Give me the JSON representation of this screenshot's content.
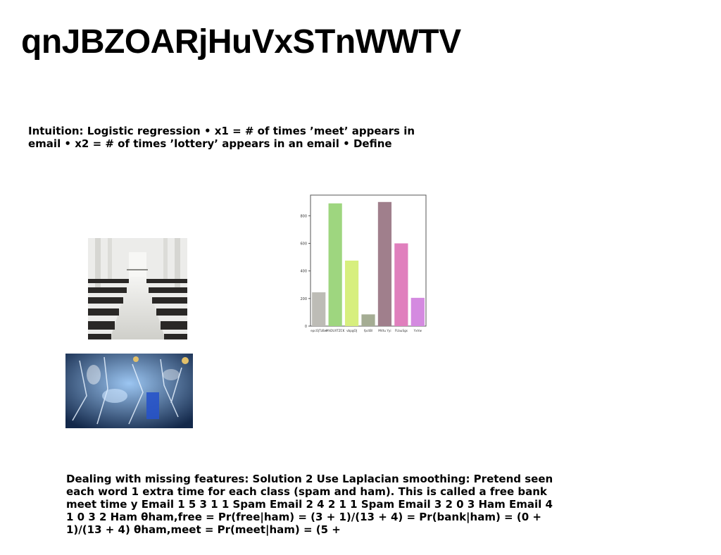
{
  "slide": {
    "title": "qnJBZOARjHuVxSTnWWTV",
    "intro_text": "Intuition: Logistic regression • x1 = # of times ’meet’ appears in email • x2 = # of times ’lottery’ appears in an email • Define",
    "body_text": "Dealing with missing features: Solution 2 Use Laplacian smoothing: Pretend seen each word 1 extra time for each class (spam and ham). This is called a free bank meet time y Email 1 5 3 1 1 Spam Email 2 4 2 1 1 Spam Email 3 2 0 3 Ham Email 4 1 0 3 2 Ham θham,free = Pr(free|ham) = (3 + 1)/(13 + 4) = Pr(bank|ham) = (0 + 1)/(13 + 4) θham,meet = Pr(meet|ham) = (5 +"
  },
  "colors": {
    "bars": [
      "#bdbcb6",
      "#9ed67f",
      "#d7ef7e",
      "#a5ad94",
      "#a07f8c",
      "#e07fbd",
      "#d48ae0"
    ]
  },
  "chart_data": {
    "type": "bar",
    "categories": [
      "epcOjTzBw",
      "MhDUXTZCK",
      "vbpgOJ",
      "fpctBl",
      "MVtu Yyi",
      "FUauSgs",
      "YxVw"
    ],
    "values": [
      245,
      890,
      475,
      85,
      900,
      600,
      205
    ],
    "yticks": [
      "0",
      "200",
      "400",
      "600",
      "800"
    ],
    "ylim": [
      0,
      950
    ],
    "grid": false
  }
}
